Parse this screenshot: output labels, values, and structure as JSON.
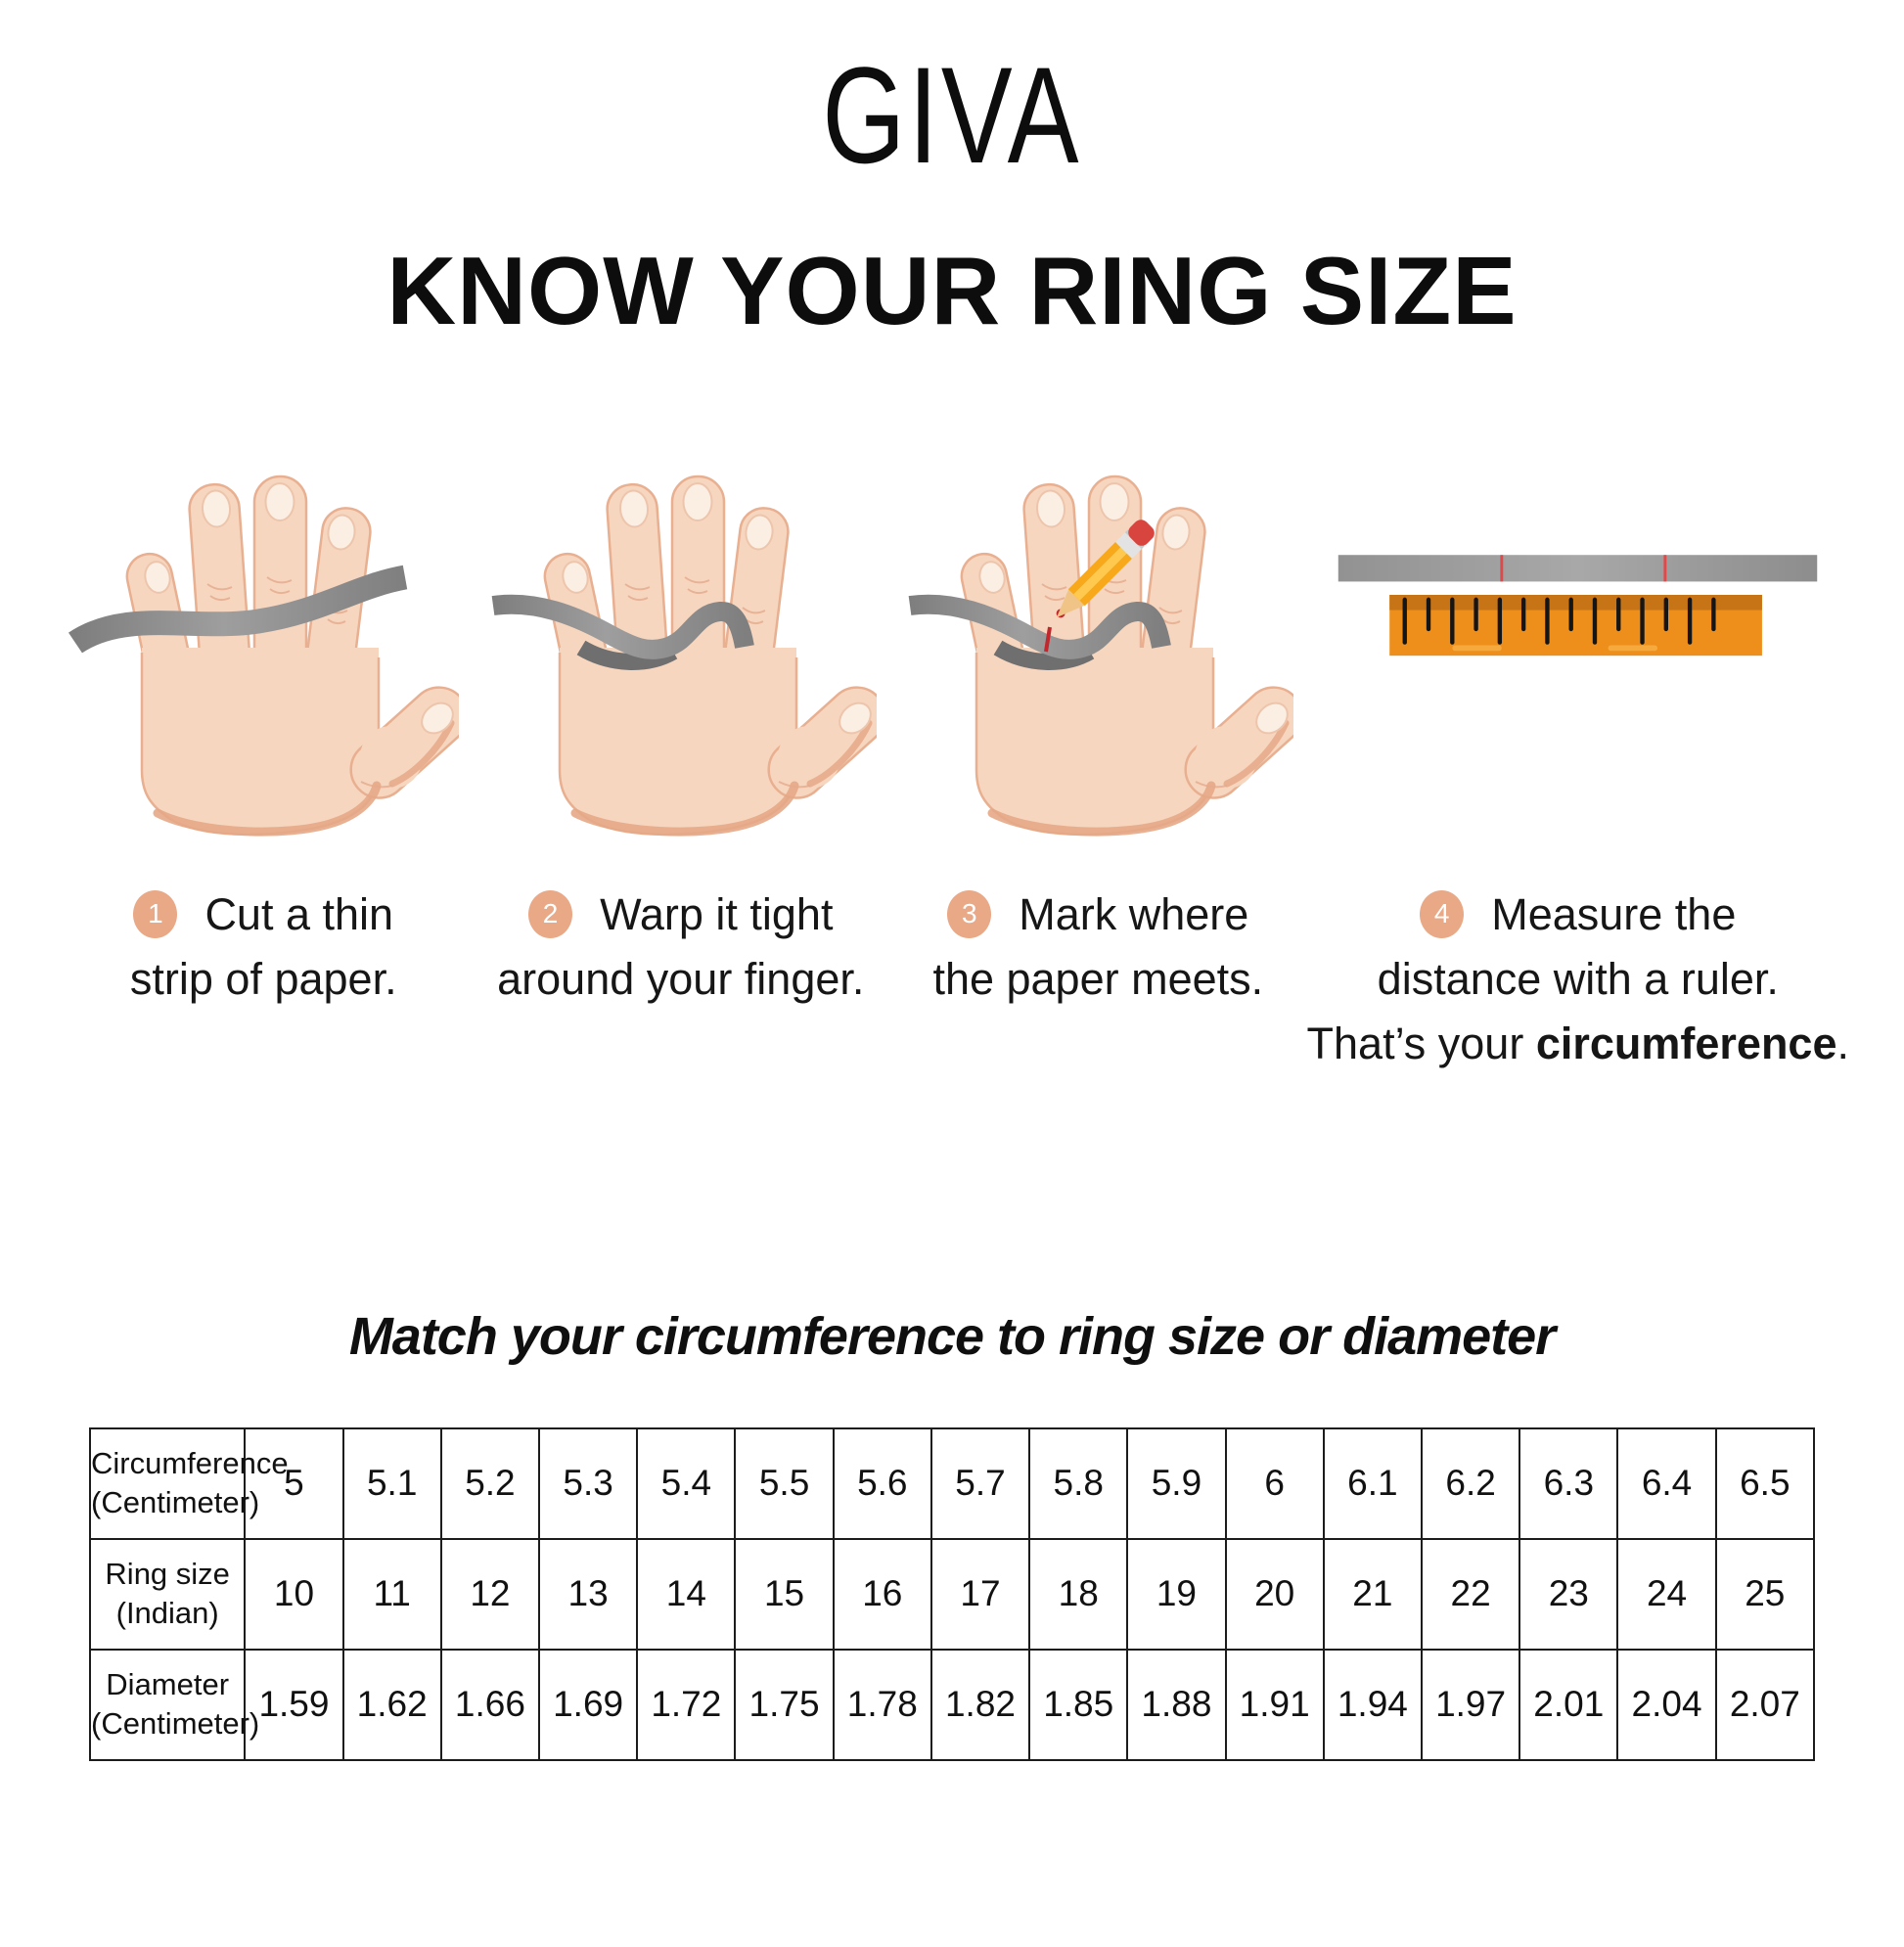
{
  "brand": {
    "logo": "GIVA"
  },
  "title": "KNOW YOUR RING SIZE",
  "steps": [
    {
      "number": "1",
      "lines": [
        "Cut a thin",
        "strip of paper."
      ]
    },
    {
      "number": "2",
      "lines": [
        "Warp it tight",
        "around your finger."
      ]
    },
    {
      "number": "3",
      "lines": [
        "Mark where",
        "the paper meets."
      ]
    },
    {
      "number": "4",
      "lines": [
        "Measure the",
        "distance with a ruler."
      ],
      "tail": {
        "prefix": "That’s your ",
        "bold": "circumference",
        "suffix": "."
      }
    }
  ],
  "table_section": {
    "heading": "Match your circumference to ring size or diameter",
    "table": {
      "rows": [
        {
          "header_lines": [
            "Circumference",
            "(Centimeter)"
          ],
          "values": [
            "5",
            "5.1",
            "5.2",
            "5.3",
            "5.4",
            "5.5",
            "5.6",
            "5.7",
            "5.8",
            "5.9",
            "6",
            "6.1",
            "6.2",
            "6.3",
            "6.4",
            "6.5"
          ]
        },
        {
          "header_lines": [
            "Ring size",
            "(Indian)"
          ],
          "values": [
            "10",
            "11",
            "12",
            "13",
            "14",
            "15",
            "16",
            "17",
            "18",
            "19",
            "20",
            "21",
            "22",
            "23",
            "24",
            "25"
          ]
        },
        {
          "header_lines": [
            "Diameter",
            "(Centimeter)"
          ],
          "values": [
            "1.59",
            "1.62",
            "1.66",
            "1.69",
            "1.72",
            "1.75",
            "1.78",
            "1.82",
            "1.85",
            "1.88",
            "1.91",
            "1.94",
            "1.97",
            "2.01",
            "2.04",
            "2.07"
          ]
        }
      ]
    }
  },
  "icons": {
    "step_badge": "numbered-circle",
    "hand": "open-palm-hand",
    "paper_strip": "gray-paper-strip",
    "pencil": "yellow-pencil",
    "ruler": "orange-ruler"
  },
  "colors": {
    "badge": "#E9A886",
    "skin": "#F7D6BF",
    "skin_outline": "#E8AF90",
    "strip_gray": "#8F8F8F",
    "ruler_orange": "#EE8E1B",
    "ruler_band": "#C77417",
    "pencil_yellow": "#F7A81B",
    "eraser_red": "#D8453E",
    "mark_red": "#C1272D",
    "text": "#111111"
  }
}
